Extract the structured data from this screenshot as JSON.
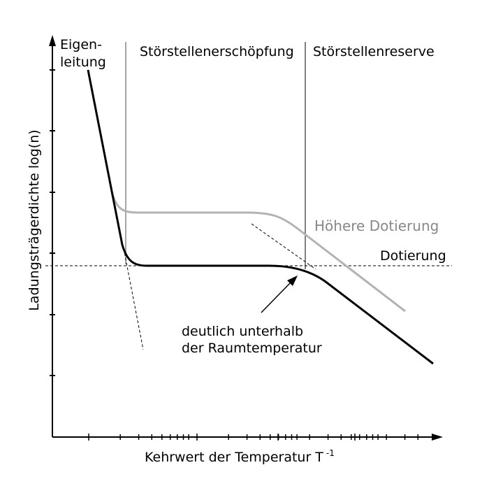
{
  "labels": {
    "eigen_line1": "Eigen-",
    "eigen_line2": "leitung",
    "erschoepfung": "Störstellenerschöpfung",
    "reserve": "Störstellenreserve",
    "hoehere_dotierung": "Höhere Dotierung",
    "dotierung": "Dotierung",
    "annotation_line1": "deutlich unterhalb",
    "annotation_line2": "der Raumtemperatur",
    "xlabel": "Kehrwert der Temperatur T",
    "xlabel_sup": "-1",
    "ylabel": "Ladungsträgerdichte log(n)"
  },
  "colors": {
    "main_curve": "#000000",
    "higher_doping_curve": "#b3b3b3",
    "higher_doping_label": "#888888",
    "axis": "#000000"
  }
}
